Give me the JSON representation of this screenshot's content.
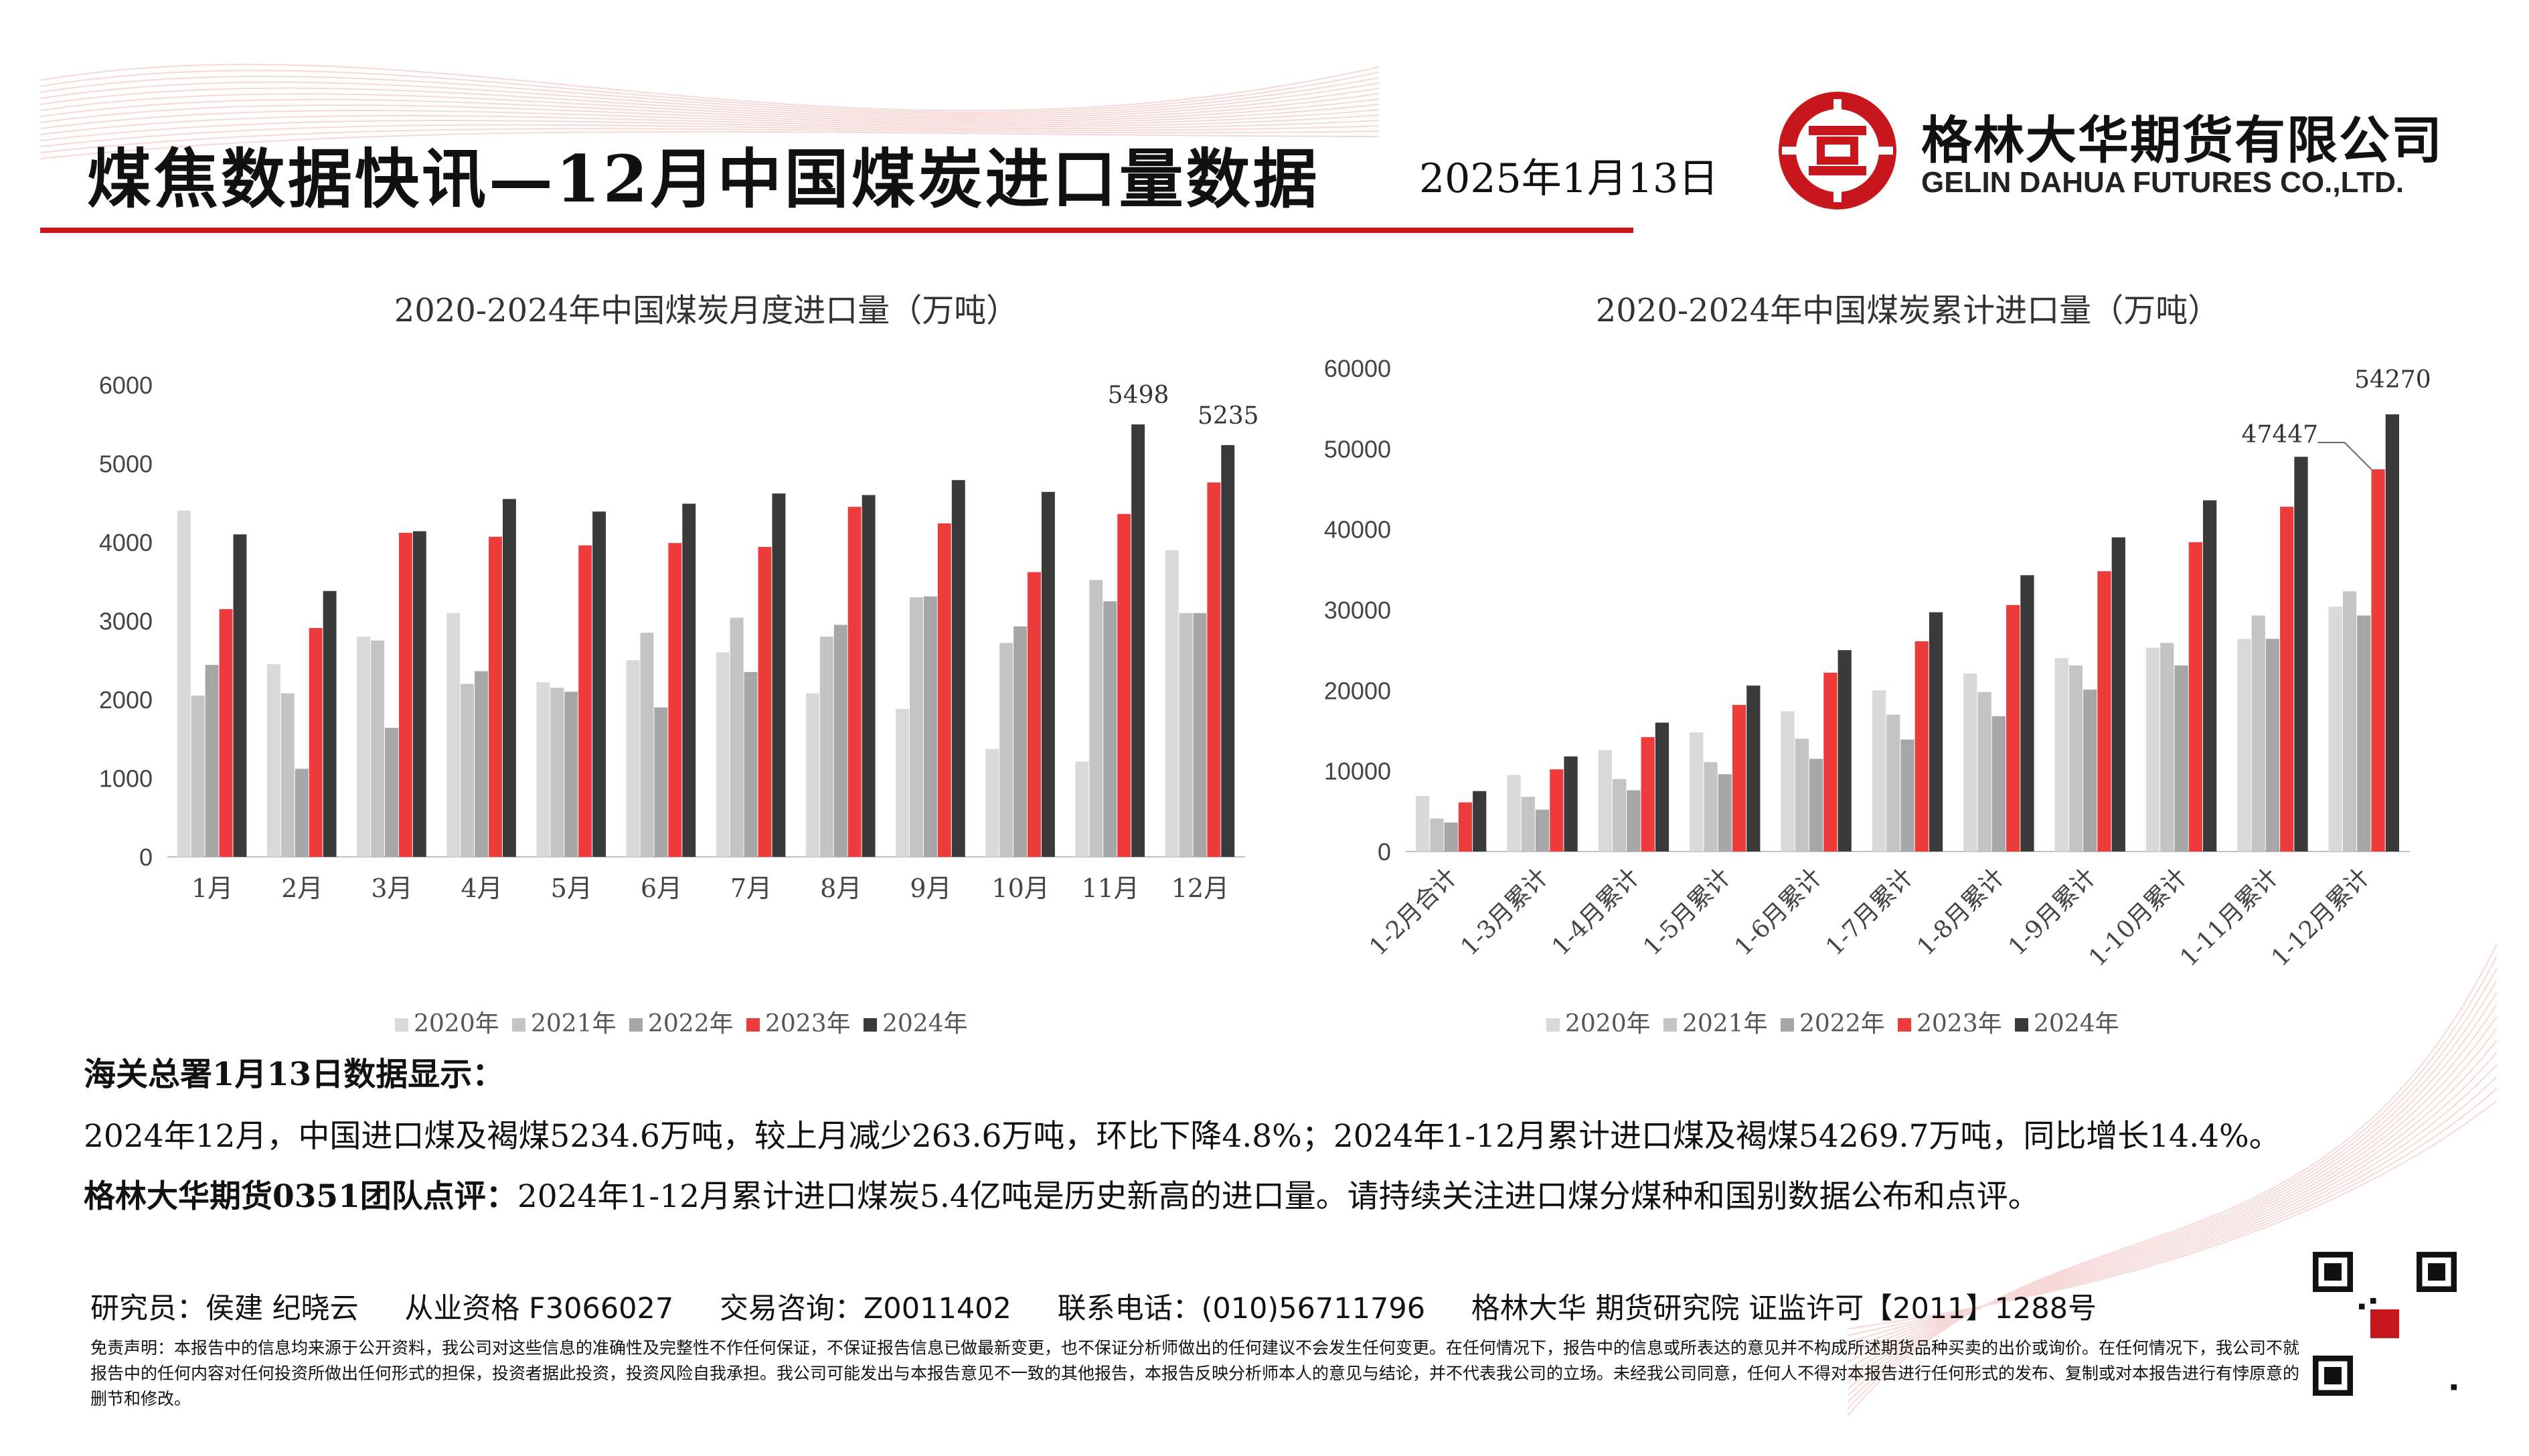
{
  "header": {
    "title": "煤焦数据快讯—12月中国煤炭进口量数据",
    "date": "2025年1月13日",
    "company_cn": "格林大华期货有限公司",
    "company_en": "GELIN DAHUA FUTURES CO.,LTD.",
    "brand_color": "#c8161d"
  },
  "chart_data": [
    {
      "type": "bar",
      "title": "2020-2024年中国煤炭月度进口量（万吨）",
      "categories": [
        "1月",
        "2月",
        "3月",
        "4月",
        "5月",
        "6月",
        "7月",
        "8月",
        "9月",
        "10月",
        "11月",
        "12月"
      ],
      "ylim": [
        0,
        6000
      ],
      "yticks": [
        0,
        1000,
        2000,
        3000,
        4000,
        5000,
        6000
      ],
      "legend_position": "bottom",
      "series": [
        {
          "name": "2020年",
          "color": "#d9d9d9",
          "values": [
            4400,
            2450,
            2800,
            3100,
            2220,
            2500,
            2600,
            2080,
            1880,
            1370,
            1210,
            3900
          ]
        },
        {
          "name": "2021年",
          "color": "#c4c4c4",
          "values": [
            2050,
            2080,
            2750,
            2200,
            2150,
            2850,
            3040,
            2800,
            3300,
            2720,
            3520,
            3100
          ]
        },
        {
          "name": "2022年",
          "color": "#a6a6a6",
          "values": [
            2440,
            1120,
            1640,
            2360,
            2100,
            1900,
            2350,
            2950,
            3310,
            2930,
            3250,
            3100
          ]
        },
        {
          "name": "2023年",
          "color": "#ee3b3b",
          "values": [
            3150,
            2910,
            4120,
            4070,
            3960,
            3990,
            3940,
            4450,
            4240,
            3620,
            4360,
            4760
          ]
        },
        {
          "name": "2024年",
          "color": "#3a3a3a",
          "values": [
            4100,
            3380,
            4140,
            4550,
            4390,
            4490,
            4620,
            4600,
            4790,
            4640,
            5498,
            5235
          ]
        }
      ],
      "data_labels": [
        {
          "series": "2024年",
          "category": "11月",
          "text": "5498"
        },
        {
          "series": "2024年",
          "category": "12月",
          "text": "5235"
        }
      ]
    },
    {
      "type": "bar",
      "title": "2020-2024年中国煤炭累计进口量（万吨）",
      "categories": [
        "1-2月合计",
        "1-3月累计",
        "1-4月累计",
        "1-5月累计",
        "1-6月累计",
        "1-7月累计",
        "1-8月累计",
        "1-9月累计",
        "1-10月累计",
        "1-11月累计",
        "1-12月累计"
      ],
      "ylim": [
        0,
        60000
      ],
      "yticks": [
        0,
        10000,
        20000,
        30000,
        40000,
        50000,
        60000
      ],
      "legend_position": "bottom",
      "series": [
        {
          "name": "2020年",
          "color": "#d9d9d9",
          "values": [
            6900,
            9500,
            12600,
            14800,
            17400,
            20000,
            22100,
            24000,
            25300,
            26400,
            30400
          ]
        },
        {
          "name": "2021年",
          "color": "#c4c4c4",
          "values": [
            4100,
            6800,
            9000,
            11100,
            14000,
            17000,
            19800,
            23100,
            25900,
            29300,
            32300
          ]
        },
        {
          "name": "2022年",
          "color": "#a6a6a6",
          "values": [
            3600,
            5200,
            7600,
            9600,
            11500,
            13900,
            16800,
            20100,
            23100,
            26400,
            29300
          ]
        },
        {
          "name": "2023年",
          "color": "#ee3b3b",
          "values": [
            6100,
            10200,
            14200,
            18200,
            22200,
            26100,
            30600,
            34800,
            38400,
            42800,
            47447
          ]
        },
        {
          "name": "2024年",
          "color": "#3a3a3a",
          "values": [
            7500,
            11800,
            16000,
            20600,
            25000,
            29700,
            34300,
            39000,
            43600,
            49000,
            54270
          ]
        }
      ],
      "data_labels": [
        {
          "series": "2023年",
          "category": "1-12月累计",
          "text": "47447"
        },
        {
          "series": "2024年",
          "category": "1-12月累计",
          "text": "54270"
        }
      ]
    }
  ],
  "body": {
    "section_title": "海关总署1月13日数据显示：",
    "line1": "2024年12月，中国进口煤及褐煤5234.6万吨，较上月减少263.6万吨，环比下降4.8%；2024年1-12月累计进口煤及褐煤54269.7万吨，同比增长14.4%。",
    "comment_label": "格林大华期货0351团队点评：",
    "comment_text": "2024年1-12月累计进口煤炭5.4亿吨是历史新高的进口量。请持续关注进口煤分煤种和国别数据公布和点评。"
  },
  "footer": {
    "researcher": "研究员：侯建 纪晓云",
    "license": "从业资格 F3066027",
    "consult": "交易咨询：Z0011402",
    "phone": "联系电话：(010)56711796",
    "institute": "格林大华 期货研究院  证监许可【2011】1288号",
    "disclaimer": "免责声明：本报告中的信息均来源于公开资料，我公司对这些信息的准确性及完整性不作任何保证，不保证报告信息已做最新变更，也不保证分析师做出的任何建议不会发生任何变更。在任何情况下，报告中的信息或所表达的意见并不构成所述期货品种买卖的出价或询价。在任何情况下，我公司不就报告中的任何内容对任何投资所做出任何形式的担保，投资者据此投资，投资风险自我承担。我公司可能发出与本报告意见不一致的其他报告，本报告反映分析师本人的意见与结论，并不代表我公司的立场。未经我公司同意，任何人不得对本报告进行任何形式的发布、复制或对本报告进行有悖原意的删节和修改。"
  }
}
